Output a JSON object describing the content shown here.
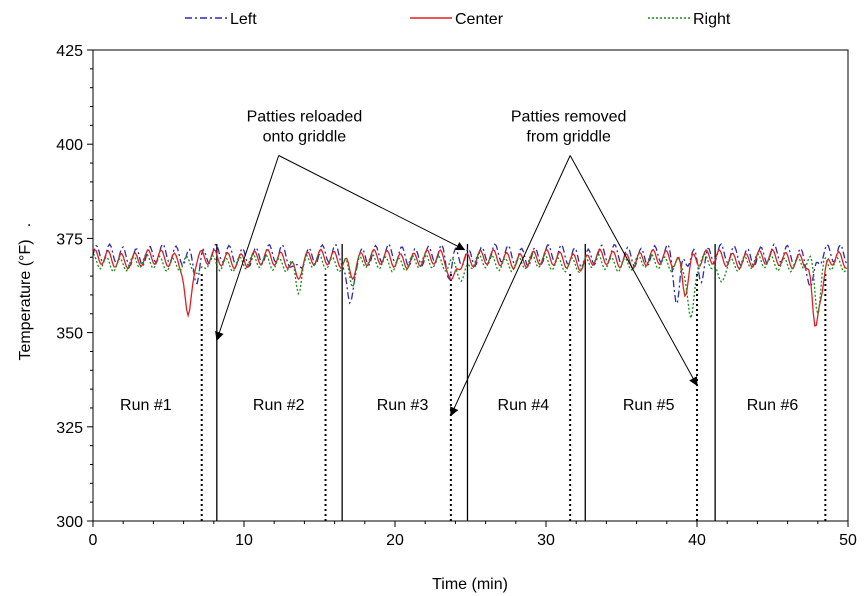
{
  "chart_data": {
    "type": "line",
    "xlabel": "Time (min)",
    "ylabel": "Temperature (°F)",
    "ylabel_suffix": ".",
    "xlim": [
      0,
      50
    ],
    "ylim": [
      300,
      425
    ],
    "xticks": [
      0,
      10,
      20,
      30,
      40,
      50
    ],
    "yticks": [
      300,
      325,
      350,
      375,
      400,
      425
    ],
    "grid": false,
    "legend_position": "top",
    "series": [
      {
        "name": "Left",
        "color": "#2b2bb0",
        "style": "dashdot",
        "base": 370.5,
        "amplitude": 2.4,
        "dips": [
          [
            6.9,
            365.5
          ],
          [
            13.4,
            366
          ],
          [
            17.0,
            356
          ],
          [
            23.6,
            366
          ],
          [
            32.6,
            370
          ],
          [
            38.7,
            358
          ],
          [
            40.3,
            366
          ],
          [
            47.6,
            362
          ]
        ]
      },
      {
        "name": "Center",
        "color": "#e02020",
        "style": "solid",
        "base": 369.5,
        "amplitude": 2.0,
        "dips": [
          [
            6.3,
            353
          ],
          [
            13.5,
            365
          ],
          [
            17.1,
            366
          ],
          [
            23.8,
            363
          ],
          [
            32.5,
            368
          ],
          [
            39.2,
            362
          ],
          [
            47.8,
            351
          ],
          [
            48.3,
            361
          ]
        ]
      },
      {
        "name": "Right",
        "color": "#1a8a1a",
        "style": "dotted",
        "base": 368.5,
        "amplitude": 1.8,
        "dips": [
          [
            7.0,
            364
          ],
          [
            13.6,
            362
          ],
          [
            17.2,
            364
          ],
          [
            24.5,
            364
          ],
          [
            32.4,
            367
          ],
          [
            39.6,
            352
          ],
          [
            41.5,
            363
          ],
          [
            48.0,
            356
          ]
        ]
      }
    ],
    "run_starts_min": [
      8.2,
      16.5,
      24.8,
      32.6,
      41.2
    ],
    "run_ends_min": [
      7.2,
      15.4,
      23.7,
      31.6,
      40.0,
      48.5
    ],
    "runs": [
      {
        "label": "Run #1",
        "x": 3.5
      },
      {
        "label": "Run #2",
        "x": 12.3
      },
      {
        "label": "Run #3",
        "x": 20.5
      },
      {
        "label": "Run #4",
        "x": 28.5
      },
      {
        "label": "Run #5",
        "x": 36.8
      },
      {
        "label": "Run #6",
        "x": 45.0
      }
    ],
    "annotations": [
      {
        "text_lines": [
          "Patties reloaded",
          "onto griddle"
        ],
        "text_x": 14.0,
        "text_y": 406,
        "origin_x": 12.3,
        "origin_y": 397,
        "targets": [
          [
            8.2,
            348
          ],
          [
            24.6,
            372
          ]
        ]
      },
      {
        "text_lines": [
          "Patties removed",
          "from griddle"
        ],
        "text_x": 31.5,
        "text_y": 406,
        "origin_x": 31.6,
        "origin_y": 397,
        "targets": [
          [
            23.7,
            328
          ],
          [
            40.0,
            336
          ]
        ]
      }
    ]
  }
}
